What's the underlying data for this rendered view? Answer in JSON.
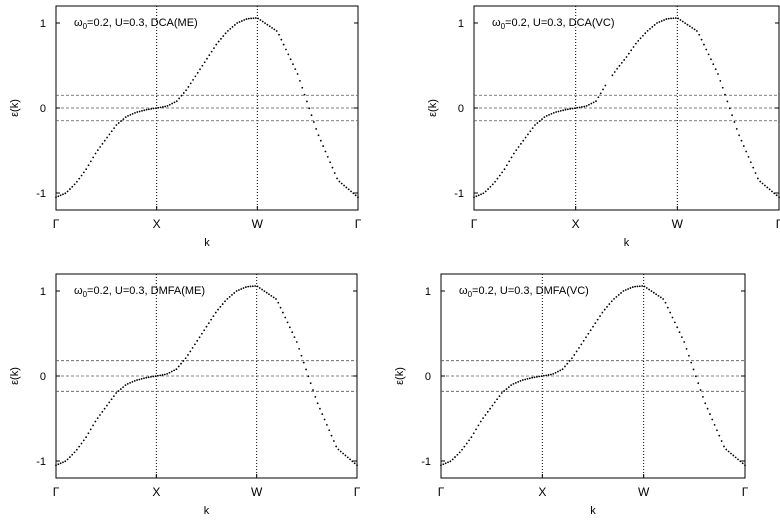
{
  "chart_data": [
    {
      "type": "scatter",
      "title": "ω0=0.2, U=0.3, DCA(ME)",
      "title_parts": [
        "ω",
        "0",
        "=0.2, U=0.3, DCA(ME)"
      ],
      "xlabel": "k",
      "ylabel": "ε(k)",
      "ylabel_parts": [
        "ε(k)"
      ],
      "x_ticks": [
        "Γ",
        "X",
        "W",
        "Γ"
      ],
      "y_ticks": [
        "-1",
        "0",
        "1"
      ],
      "xlim": [
        0,
        3
      ],
      "ylim": [
        -1.2,
        1.2
      ],
      "hlines": [
        0.15,
        0,
        -0.15
      ],
      "vlines": [
        1,
        2
      ],
      "gap": false,
      "series": [
        {
          "x": [
            0,
            0.1,
            0.2,
            0.3,
            0.4,
            0.5,
            0.6,
            0.7,
            0.8,
            0.9,
            1,
            1.1,
            1.2,
            1.3,
            1.4,
            1.5,
            1.6,
            1.7,
            1.8,
            1.9,
            2,
            2.2,
            2.4,
            2.6,
            2.8,
            3
          ],
          "y": [
            -1.05,
            -1.0,
            -0.88,
            -0.72,
            -0.52,
            -0.36,
            -0.2,
            -0.1,
            -0.05,
            -0.02,
            0,
            0.02,
            0.08,
            0.22,
            0.4,
            0.58,
            0.76,
            0.9,
            1.0,
            1.05,
            1.06,
            0.9,
            0.4,
            -0.3,
            -0.85,
            -1.05
          ]
        }
      ]
    },
    {
      "type": "scatter",
      "title": "ω0=0.2, U=0.3, DCA(VC)",
      "title_parts": [
        "ω",
        "0",
        "=0.2, U=0.3, DCA(VC)"
      ],
      "xlabel": "k",
      "ylabel": "ε(k)",
      "ylabel_parts": [
        "ε(k)"
      ],
      "x_ticks": [
        "Γ",
        "X",
        "W",
        "Γ"
      ],
      "y_ticks": [
        "-1",
        "0",
        "1"
      ],
      "xlim": [
        0,
        3
      ],
      "ylim": [
        -1.2,
        1.2
      ],
      "hlines": [
        0.15,
        0,
        -0.15
      ],
      "vlines": [
        1,
        2
      ],
      "gap": true,
      "series": [
        {
          "x": [
            0,
            0.1,
            0.2,
            0.3,
            0.4,
            0.5,
            0.6,
            0.7,
            0.8,
            0.9,
            1,
            1.1,
            1.2,
            1.3,
            1.4,
            1.5,
            1.6,
            1.7,
            1.8,
            1.9,
            2,
            2.2,
            2.4,
            2.6,
            2.8,
            3
          ],
          "y": [
            -1.05,
            -1.0,
            -0.88,
            -0.72,
            -0.52,
            -0.36,
            -0.2,
            -0.1,
            -0.05,
            -0.02,
            0,
            0.02,
            0.08,
            0.28,
            0.45,
            0.6,
            0.77,
            0.9,
            1.0,
            1.05,
            1.06,
            0.9,
            0.4,
            -0.3,
            -0.85,
            -1.05
          ]
        }
      ]
    },
    {
      "type": "scatter",
      "title": "ω0=0.2, U=0.3, DMFA(ME)",
      "title_parts": [
        "ω",
        "0",
        "=0.2, U=0.3, DMFA(ME)"
      ],
      "xlabel": "k",
      "ylabel": "ε(k)",
      "ylabel_parts": [
        "ε(k)"
      ],
      "x_ticks": [
        "Γ",
        "X",
        "W",
        "Γ"
      ],
      "y_ticks": [
        "-1",
        "0",
        "1"
      ],
      "xlim": [
        0,
        3
      ],
      "ylim": [
        -1.2,
        1.2
      ],
      "hlines": [
        0.18,
        0,
        -0.18
      ],
      "vlines": [
        1,
        2
      ],
      "gap": false,
      "series": [
        {
          "x": [
            0,
            0.1,
            0.2,
            0.3,
            0.4,
            0.5,
            0.6,
            0.7,
            0.8,
            0.9,
            1,
            1.1,
            1.2,
            1.3,
            1.4,
            1.5,
            1.6,
            1.7,
            1.8,
            1.9,
            2,
            2.2,
            2.4,
            2.6,
            2.8,
            3
          ],
          "y": [
            -1.05,
            -1.0,
            -0.88,
            -0.72,
            -0.52,
            -0.36,
            -0.2,
            -0.1,
            -0.05,
            -0.02,
            0,
            0.02,
            0.08,
            0.22,
            0.4,
            0.58,
            0.76,
            0.9,
            1.0,
            1.05,
            1.06,
            0.9,
            0.4,
            -0.3,
            -0.85,
            -1.05
          ]
        }
      ]
    },
    {
      "type": "scatter",
      "title": "ω0=0.2, U=0.3, DMFA(VC)",
      "title_parts": [
        "ω",
        "0",
        "=0.2, U=0.3, DMFA(VC)"
      ],
      "xlabel": "k",
      "ylabel": "ε(k)",
      "ylabel_parts": [
        "ε(k)"
      ],
      "x_ticks": [
        "Γ",
        "X",
        "W",
        "Γ"
      ],
      "y_ticks": [
        "-1",
        "0",
        "1"
      ],
      "xlim": [
        0,
        3
      ],
      "ylim": [
        -1.2,
        1.2
      ],
      "hlines": [
        0.18,
        0,
        -0.18
      ],
      "vlines": [
        1,
        2
      ],
      "gap": false,
      "series": [
        {
          "x": [
            0,
            0.1,
            0.2,
            0.3,
            0.4,
            0.5,
            0.6,
            0.7,
            0.8,
            0.9,
            1,
            1.1,
            1.2,
            1.3,
            1.4,
            1.5,
            1.6,
            1.7,
            1.8,
            1.9,
            2,
            2.2,
            2.4,
            2.6,
            2.8,
            3
          ],
          "y": [
            -1.05,
            -1.0,
            -0.88,
            -0.72,
            -0.52,
            -0.36,
            -0.2,
            -0.1,
            -0.05,
            -0.02,
            0,
            0.02,
            0.08,
            0.22,
            0.4,
            0.58,
            0.76,
            0.9,
            1.0,
            1.05,
            1.06,
            0.9,
            0.4,
            -0.3,
            -0.85,
            -1.05
          ]
        }
      ]
    }
  ]
}
